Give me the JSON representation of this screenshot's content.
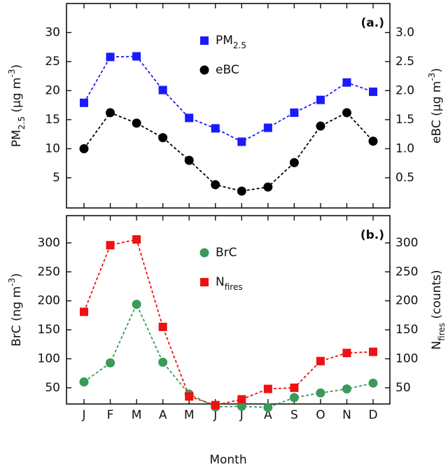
{
  "chart_data": [
    {
      "type": "line",
      "panel_label": "(a.)",
      "legend": "upper center",
      "categories": [
        "J",
        "F",
        "M",
        "A",
        "M",
        "J",
        "J",
        "A",
        "S",
        "O",
        "N",
        "D"
      ],
      "ylabel": [
        {
          "text": "PM"
        },
        {
          "text": "2.5",
          "script": "sub"
        },
        {
          "text": "  (μg m"
        },
        {
          "text": "-3",
          "script": "super"
        },
        {
          "text": ")"
        }
      ],
      "y2label": [
        {
          "text": "eBC  (μg m"
        },
        {
          "text": "-3",
          "script": "super"
        },
        {
          "text": ")"
        }
      ],
      "ylim": [
        -0.2,
        35
      ],
      "yticks": [
        5,
        10,
        15,
        20,
        25,
        30
      ],
      "y2lim": [
        -0.02,
        3.5
      ],
      "y2ticks": [
        {
          "value": 0.5,
          "label": "0.5"
        },
        {
          "value": 1,
          "label": "1.0"
        },
        {
          "value": 1.5,
          "label": "1.5"
        },
        {
          "value": 2,
          "label": "2.0"
        },
        {
          "value": 2.5,
          "label": "2.5"
        },
        {
          "value": 3,
          "label": "3.0"
        }
      ],
      "series": [
        {
          "name": [
            {
              "text": "PM"
            },
            {
              "text": "2.5",
              "script": "sub"
            }
          ],
          "color": "#1a1aff",
          "marker": "square",
          "axis": "y",
          "values": [
            17.9,
            25.8,
            25.9,
            20.1,
            15.3,
            13.5,
            11.2,
            13.6,
            16.2,
            18.4,
            21.4,
            19.8
          ]
        },
        {
          "name": [
            {
              "text": "eBC"
            }
          ],
          "color": "#000000",
          "marker": "circle",
          "axis": "y2",
          "values": [
            1.0,
            1.62,
            1.44,
            1.19,
            0.8,
            0.38,
            0.27,
            0.34,
            0.76,
            1.39,
            1.62,
            1.13
          ]
        }
      ]
    },
    {
      "type": "line",
      "panel_label": "(b.)",
      "legend": "upper center",
      "xlabel": "Month",
      "categories": [
        "J",
        "F",
        "M",
        "A",
        "M",
        "J",
        "J",
        "A",
        "S",
        "O",
        "N",
        "D"
      ],
      "ylabel": [
        {
          "text": "BrC  (ng m"
        },
        {
          "text": "-3",
          "script": "super"
        },
        {
          "text": ")"
        }
      ],
      "y2label": [
        {
          "text": "N"
        },
        {
          "text": "fires",
          "script": "sub"
        },
        {
          "text": "  (counts)"
        }
      ],
      "ylim": [
        22,
        347
      ],
      "yticks": [
        50,
        100,
        150,
        200,
        250,
        300
      ],
      "y2lim": [
        22,
        347
      ],
      "y2ticks": [
        50,
        100,
        150,
        200,
        250,
        300
      ],
      "series": [
        {
          "name": [
            {
              "text": "BrC"
            }
          ],
          "color": "#3a9a5a",
          "marker": "circle",
          "axis": "y",
          "values": [
            60,
            93,
            194,
            94,
            39,
            17,
            18,
            16,
            33,
            41,
            48,
            58
          ]
        },
        {
          "name": [
            {
              "text": "N"
            },
            {
              "text": "fires",
              "script": "sub"
            }
          ],
          "color": "#ee1111",
          "marker": "square",
          "axis": "y2",
          "values": [
            181,
            296,
            306,
            155,
            35,
            20,
            30,
            48,
            50,
            96,
            110,
            112
          ]
        }
      ]
    }
  ]
}
